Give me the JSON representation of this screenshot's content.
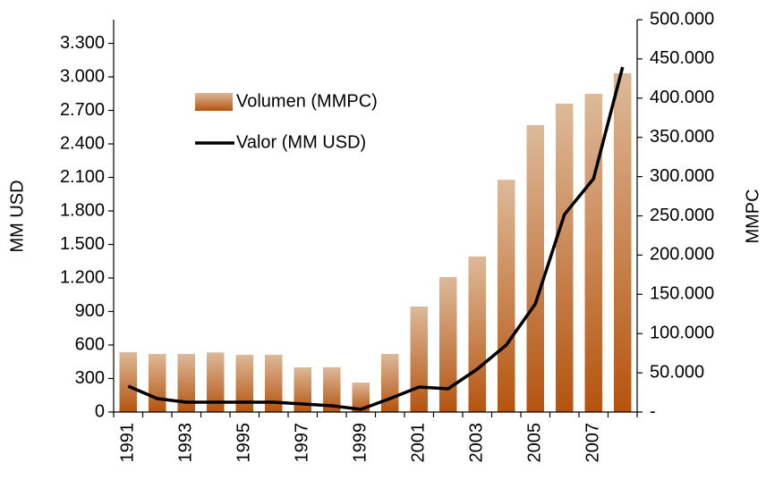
{
  "chart_data": {
    "type": "bar-line",
    "categories": [
      "1991",
      null,
      "1993",
      null,
      "1995",
      null,
      "1997",
      null,
      "1999",
      null,
      "2001",
      null,
      "2003",
      null,
      "2005",
      null,
      "2007",
      null
    ],
    "series": [
      {
        "name": "Volumen (MMPC)",
        "type": "bar",
        "axis": "y2",
        "color": "#b5540f",
        "values": [
          76300,
          74000,
          74000,
          76000,
          72900,
          72900,
          56900,
          57000,
          37600,
          74000,
          134400,
          172000,
          198200,
          296000,
          365600,
          393000,
          405500,
          431700
        ]
      },
      {
        "name": "Valor (MM USD)",
        "type": "line",
        "axis": "y",
        "color": "#000000",
        "values": [
          232,
          120,
          88,
          88,
          88,
          88,
          72,
          56,
          24,
          120,
          224,
          208,
          384,
          600,
          968,
          1768,
          2088,
          3088
        ]
      }
    ],
    "y_label": "MM USD",
    "y2_label": "MMPC",
    "ylim": [
      0,
      3512
    ],
    "yticks": [
      0,
      300,
      600,
      900,
      {
        "value": 1200,
        "label": "1.200"
      },
      {
        "value": 1500,
        "label": "1.500"
      },
      {
        "value": 1800,
        "label": "1.800"
      },
      {
        "value": 2100,
        "label": "2.100"
      },
      {
        "value": 2400,
        "label": "2.400"
      },
      {
        "value": 2700,
        "label": "2.700"
      },
      {
        "value": 3000,
        "label": "3.000"
      },
      {
        "value": 3300,
        "label": "3.300"
      }
    ],
    "y2lim": [
      0,
      500000
    ],
    "y2ticks": [
      {
        "value": 0,
        "label": "-"
      },
      {
        "value": 50000,
        "label": "50.000"
      },
      {
        "value": 100000,
        "label": "100.000"
      },
      {
        "value": 150000,
        "label": "150.000"
      },
      {
        "value": 200000,
        "label": "200.000"
      },
      {
        "value": 250000,
        "label": "250.000"
      },
      {
        "value": 300000,
        "label": "300.000"
      },
      {
        "value": 350000,
        "label": "350.000"
      },
      {
        "value": 400000,
        "label": "400.000"
      },
      {
        "value": 450000,
        "label": "450.000"
      },
      {
        "value": 500000,
        "label": "500.000"
      }
    ],
    "legend": "upper left"
  }
}
